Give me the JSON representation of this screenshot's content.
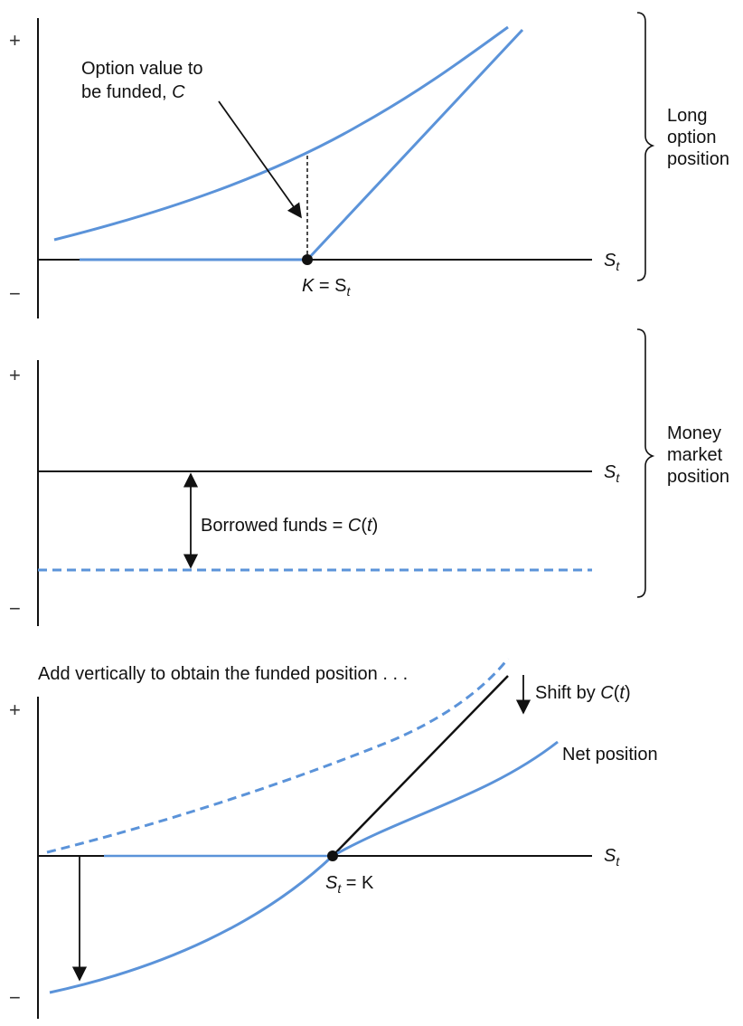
{
  "colors": {
    "curve": "#5b93d9",
    "axis": "#111111"
  },
  "panel_top": {
    "plus": "+",
    "minus": "−",
    "axis_label": "S",
    "axis_sub": "t",
    "callout_line1": "Option value to",
    "callout_line2": "be funded, ",
    "callout_var": "C",
    "strike_k": "K",
    "strike_eq": " = S",
    "strike_sub": "t",
    "brace_label": [
      "Long",
      "option",
      "position"
    ]
  },
  "panel_mid": {
    "plus": "+",
    "minus": "−",
    "axis_label": "S",
    "axis_sub": "t",
    "borrow_text": "Borrowed funds = ",
    "borrow_var": "C",
    "borrow_paren_open": "(",
    "borrow_t": "t",
    "borrow_paren_close": ")",
    "brace_label": [
      "Money",
      "market",
      "position"
    ]
  },
  "panel_bot": {
    "plus": "+",
    "minus": "−",
    "axis_label": "S",
    "axis_sub": "t",
    "caption": "Add vertically to obtain the funded position . . .",
    "shift_text": "Shift by ",
    "shift_var": "C",
    "shift_paren_open": "(",
    "shift_t": "t",
    "shift_paren_close": ")",
    "net_label": "Net position",
    "strike_s": "S",
    "strike_sub": "t",
    "strike_eq": " = K"
  }
}
